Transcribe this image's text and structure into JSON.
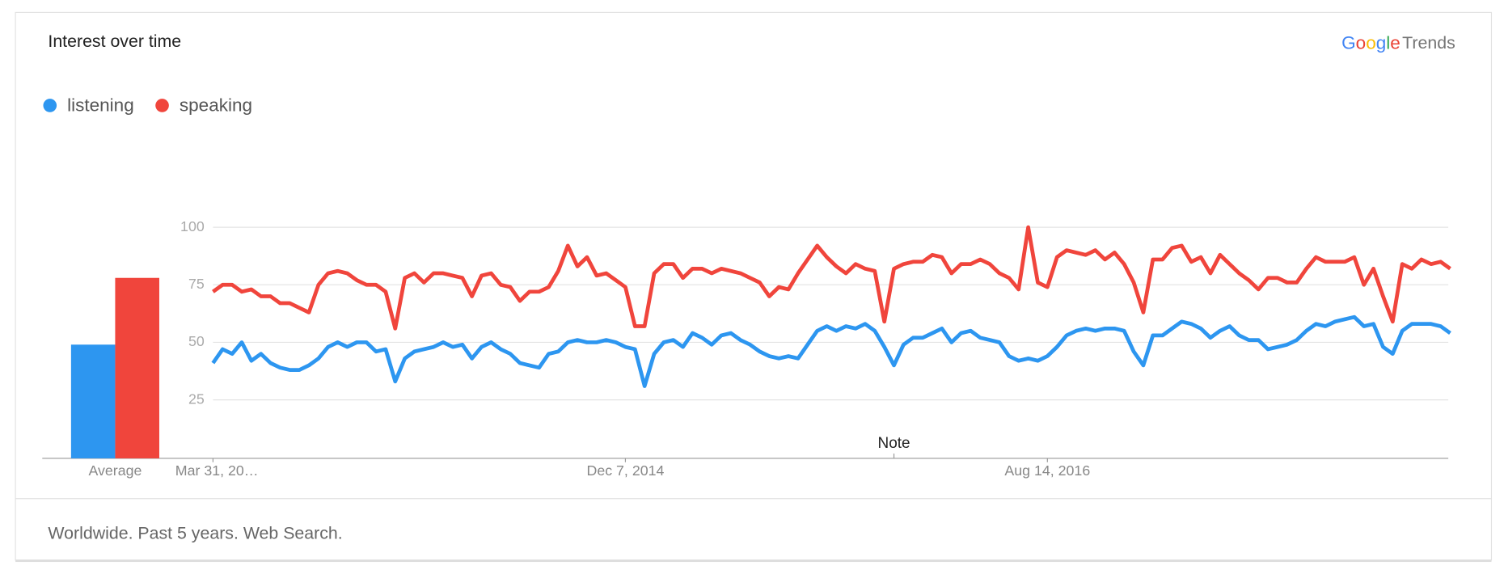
{
  "chart_data": {
    "type": "line",
    "title": "Interest over time",
    "brand": "Google",
    "product": "Trends",
    "footer": "Worldwide. Past 5 years. Web Search.",
    "average_label": "Average",
    "xlim": [
      0,
      129
    ],
    "xticks": [
      {
        "value": 0,
        "label": "Mar 31, 20…"
      },
      {
        "value": 43,
        "label": "Dec 7, 2014"
      },
      {
        "value": 87,
        "label": "Aug 14, 2016"
      }
    ],
    "ylim": [
      0,
      100
    ],
    "yticks": [
      25,
      50,
      75,
      100
    ],
    "grid": true,
    "note": {
      "x": 71,
      "text": "Note"
    },
    "series": [
      {
        "name": "listening",
        "color": "#2d96f0",
        "average": 49,
        "values": [
          41,
          47,
          45,
          50,
          42,
          45,
          41,
          39,
          38,
          38,
          40,
          43,
          48,
          50,
          48,
          50,
          50,
          46,
          47,
          33,
          43,
          46,
          47,
          48,
          50,
          48,
          49,
          43,
          48,
          50,
          47,
          45,
          41,
          40,
          39,
          45,
          46,
          50,
          51,
          50,
          50,
          51,
          50,
          48,
          47,
          31,
          45,
          50,
          51,
          48,
          54,
          52,
          49,
          53,
          54,
          51,
          49,
          46,
          44,
          43,
          44,
          43,
          49,
          55,
          57,
          55,
          57,
          56,
          58,
          55,
          48,
          40,
          49,
          52,
          52,
          54,
          56,
          50,
          54,
          55,
          52,
          51,
          50,
          44,
          42,
          43,
          42,
          44,
          48,
          53,
          55,
          56,
          55,
          56,
          56,
          55,
          46,
          40,
          53,
          53,
          56,
          59,
          58,
          56,
          52,
          55,
          57,
          53,
          51,
          51,
          47,
          48,
          49,
          51,
          55,
          58,
          57,
          59,
          60,
          61,
          57,
          58,
          48,
          45,
          55,
          58,
          58,
          58,
          57,
          54
        ]
      },
      {
        "name": "speaking",
        "color": "#f0453c",
        "average": 78,
        "values": [
          72,
          75,
          75,
          72,
          73,
          70,
          70,
          67,
          67,
          65,
          63,
          75,
          80,
          81,
          80,
          77,
          75,
          75,
          72,
          56,
          78,
          80,
          76,
          80,
          80,
          79,
          78,
          70,
          79,
          80,
          75,
          74,
          68,
          72,
          72,
          74,
          81,
          92,
          83,
          87,
          79,
          80,
          77,
          74,
          57,
          57,
          80,
          84,
          84,
          78,
          82,
          82,
          80,
          82,
          81,
          80,
          78,
          76,
          70,
          74,
          73,
          80,
          86,
          92,
          87,
          83,
          80,
          84,
          82,
          81,
          59,
          82,
          84,
          85,
          85,
          88,
          87,
          80,
          84,
          84,
          86,
          84,
          80,
          78,
          73,
          100,
          76,
          74,
          87,
          90,
          89,
          88,
          90,
          86,
          89,
          84,
          76,
          63,
          86,
          86,
          91,
          92,
          85,
          87,
          80,
          88,
          84,
          80,
          77,
          73,
          78,
          78,
          76,
          76,
          82,
          87,
          85,
          85,
          85,
          87,
          75,
          82,
          70,
          59,
          84,
          82,
          86,
          84,
          85,
          82
        ]
      }
    ]
  }
}
